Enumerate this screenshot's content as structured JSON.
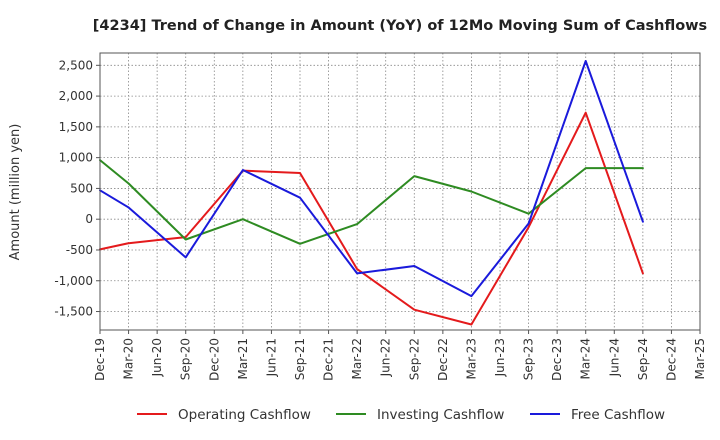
{
  "chart_data": {
    "type": "line",
    "title": "[4234]  Trend of Change in Amount (YoY) of 12Mo Moving Sum of Cashflows",
    "xlabel": "",
    "ylabel": "Amount (million yen)",
    "ylim": [
      -1800,
      2700
    ],
    "yticks": [
      2500,
      2000,
      1500,
      1000,
      500,
      0,
      -500,
      -1000,
      -1500
    ],
    "ytick_labels": [
      "2,500",
      "2,000",
      "1,500",
      "1,000",
      "500",
      "0",
      "-500",
      "-1,000",
      "-1,500"
    ],
    "categories": [
      "Dec-19",
      "Mar-20",
      "Jun-20",
      "Sep-20",
      "Dec-20",
      "Mar-21",
      "Jun-21",
      "Sep-21",
      "Dec-21",
      "Mar-22",
      "Jun-22",
      "Sep-22",
      "Dec-22",
      "Mar-23",
      "Jun-23",
      "Sep-23",
      "Dec-23",
      "Mar-24",
      "Jun-24",
      "Sep-24",
      "Dec-24",
      "Mar-25"
    ],
    "grid": true,
    "legend_position": "bottom",
    "series": [
      {
        "name": "Operating Cashflow",
        "color": "#e41a1c",
        "values": [
          -490,
          -390,
          -340,
          -290,
          null,
          790,
          null,
          750,
          null,
          -810,
          null,
          -1470,
          null,
          -1710,
          null,
          -130,
          null,
          1730,
          null,
          -880,
          null,
          null
        ]
      },
      {
        "name": "Investing Cashflow",
        "color": "#2e8b22",
        "values": [
          960,
          580,
          null,
          -330,
          null,
          0,
          null,
          -400,
          null,
          -80,
          null,
          700,
          null,
          450,
          null,
          90,
          null,
          830,
          null,
          830,
          null,
          null
        ]
      },
      {
        "name": "Free Cashflow",
        "color": "#1a1adb",
        "values": [
          470,
          190,
          null,
          -620,
          null,
          800,
          null,
          350,
          null,
          -880,
          null,
          -760,
          null,
          -1250,
          null,
          -70,
          null,
          2570,
          null,
          -40,
          null,
          null
        ]
      }
    ]
  }
}
